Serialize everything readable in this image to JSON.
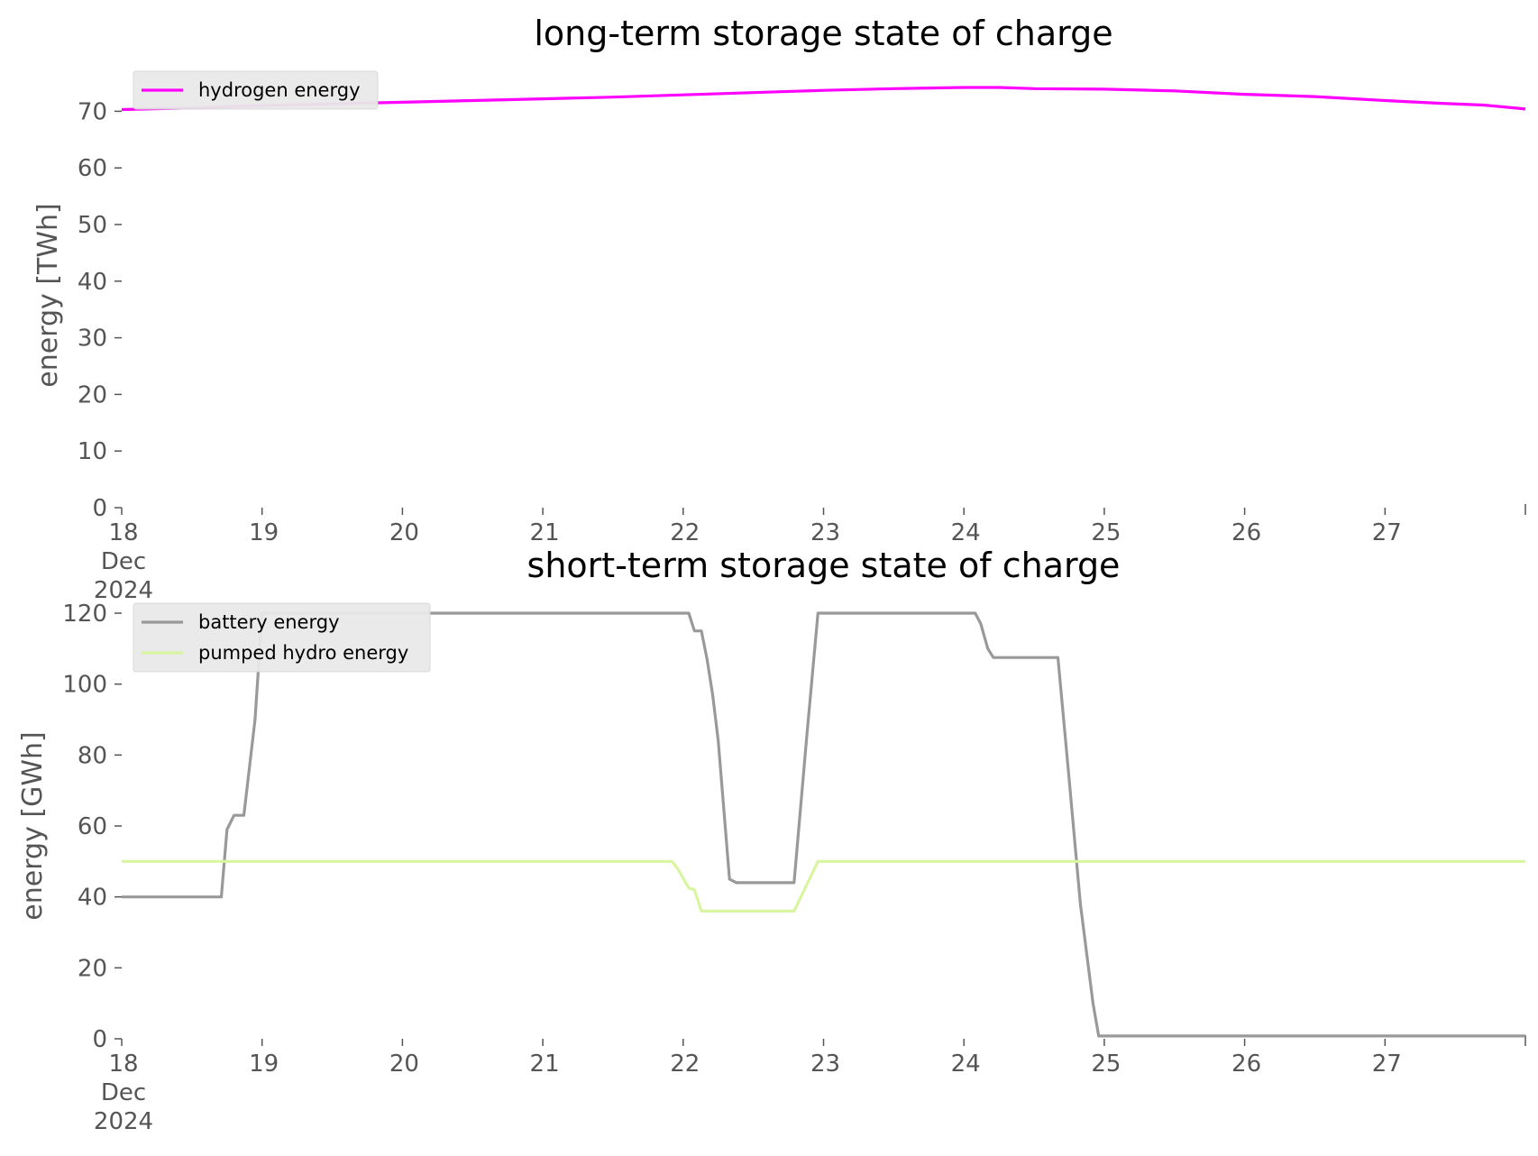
{
  "chart_data": [
    {
      "type": "line",
      "title": "long-term storage state of charge",
      "ylabel": "energy [TWh]",
      "xlabel": "",
      "ylim": [
        0,
        75
      ],
      "yticks": [
        0,
        10,
        20,
        30,
        40,
        50,
        60,
        70
      ],
      "xlim": [
        "2024-12-18",
        "2024-12-28"
      ],
      "xticks": [
        {
          "label": [
            "18",
            "Dec",
            "2024"
          ],
          "day": 18
        },
        {
          "label": [
            "19"
          ],
          "day": 19
        },
        {
          "label": [
            "20"
          ],
          "day": 20
        },
        {
          "label": [
            "21"
          ],
          "day": 21
        },
        {
          "label": [
            "22"
          ],
          "day": 22
        },
        {
          "label": [
            "23"
          ],
          "day": 23
        },
        {
          "label": [
            "24"
          ],
          "day": 24
        },
        {
          "label": [
            "25"
          ],
          "day": 25
        },
        {
          "label": [
            "26"
          ],
          "day": 26
        },
        {
          "label": [
            "27"
          ],
          "day": 27
        }
      ],
      "legend_position": "top-left",
      "grid": false,
      "series": [
        {
          "name": "hydrogen energy",
          "color": "#ff00ff",
          "x": [
            18,
            18.5,
            19,
            19.5,
            20,
            20.5,
            21,
            21.5,
            22,
            22.5,
            23,
            23.5,
            24,
            24.25,
            24.5,
            25,
            25.5,
            26,
            26.5,
            27,
            27.4,
            27.7,
            28
          ],
          "y": [
            70.3,
            70.6,
            71.0,
            71.3,
            71.6,
            71.9,
            72.2,
            72.5,
            72.9,
            73.3,
            73.7,
            74.0,
            74.2,
            74.2,
            74.0,
            73.9,
            73.6,
            73.0,
            72.6,
            71.9,
            71.4,
            71.1,
            70.4
          ]
        }
      ]
    },
    {
      "type": "line",
      "title": "short-term storage state of charge",
      "ylabel": "energy [GWh]",
      "xlabel": "",
      "ylim": [
        0,
        120
      ],
      "yticks": [
        0,
        20,
        40,
        60,
        80,
        100,
        120
      ],
      "xlim": [
        "2024-12-18",
        "2024-12-28"
      ],
      "xticks": [
        {
          "label": [
            "18",
            "Dec",
            "2024"
          ],
          "day": 18
        },
        {
          "label": [
            "19"
          ],
          "day": 19
        },
        {
          "label": [
            "20"
          ],
          "day": 20
        },
        {
          "label": [
            "21"
          ],
          "day": 21
        },
        {
          "label": [
            "22"
          ],
          "day": 22
        },
        {
          "label": [
            "23"
          ],
          "day": 23
        },
        {
          "label": [
            "24"
          ],
          "day": 24
        },
        {
          "label": [
            "25"
          ],
          "day": 25
        },
        {
          "label": [
            "26"
          ],
          "day": 26
        },
        {
          "label": [
            "27"
          ],
          "day": 27
        }
      ],
      "legend_position": "top-left",
      "grid": false,
      "series": [
        {
          "name": "battery energy",
          "color": "#999999",
          "x": [
            18,
            18.71,
            18.75,
            18.8,
            18.83,
            18.87,
            18.95,
            19.0,
            22.04,
            22.08,
            22.13,
            22.17,
            22.21,
            22.25,
            22.33,
            22.38,
            22.79,
            22.88,
            22.96,
            24.08,
            24.12,
            24.17,
            24.21,
            24.67,
            24.75,
            24.83,
            24.92,
            24.96,
            28
          ],
          "y": [
            40,
            40,
            59,
            63,
            63,
            63,
            90,
            120,
            120,
            115,
            115,
            107,
            97,
            84,
            45,
            44,
            44,
            85,
            120,
            120,
            117,
            110,
            107.5,
            107.5,
            73,
            38,
            10,
            0.8,
            0.8
          ]
        },
        {
          "name": "pumped hydro energy",
          "color": "#d8f5a0",
          "x": [
            18,
            21.92,
            21.96,
            22.04,
            22.08,
            22.13,
            22.79,
            22.96,
            28
          ],
          "y": [
            50,
            50,
            48,
            42.5,
            42,
            36,
            36,
            50,
            50
          ]
        }
      ]
    }
  ]
}
